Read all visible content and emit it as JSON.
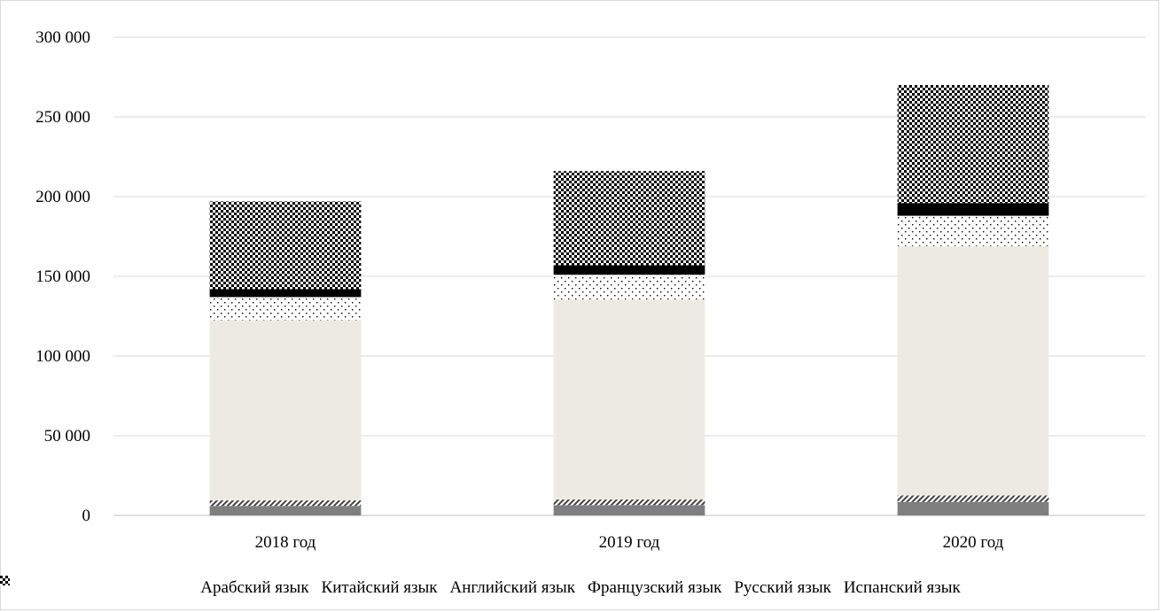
{
  "chart_data": {
    "type": "bar",
    "stacked": true,
    "categories": [
      "2018 год",
      "2019 год",
      "2020 год"
    ],
    "ylim": [
      0,
      300000
    ],
    "yticks": [
      0,
      50000,
      100000,
      150000,
      200000,
      250000,
      300000
    ],
    "ytick_labels": [
      "0",
      "50 000",
      "100 000",
      "150 000",
      "200 000",
      "250 000",
      "300 000"
    ],
    "grid": true,
    "legend_position": "bottom",
    "series": [
      {
        "name": "Арабский язык",
        "values": [
          6000,
          6500,
          8500
        ],
        "color": "#7f7f7f",
        "pattern": "solid-gray"
      },
      {
        "name": "Китайский язык",
        "values": [
          3500,
          3500,
          4000
        ],
        "color": "#595959",
        "pattern": "diagonal-hatch"
      },
      {
        "name": "Английский язык",
        "values": [
          113000,
          125500,
          156500
        ],
        "color": "#eceae2",
        "pattern": "solid-beige"
      },
      {
        "name": "Французский язык",
        "values": [
          14500,
          15500,
          19000
        ],
        "color": "#000000",
        "pattern": "dots"
      },
      {
        "name": "Русский язык",
        "values": [
          5000,
          6000,
          8000
        ],
        "color": "#000000",
        "pattern": "solid-black"
      },
      {
        "name": "Испанский язык",
        "values": [
          55000,
          59000,
          74000
        ],
        "color": "#000000",
        "pattern": "checker"
      }
    ]
  }
}
